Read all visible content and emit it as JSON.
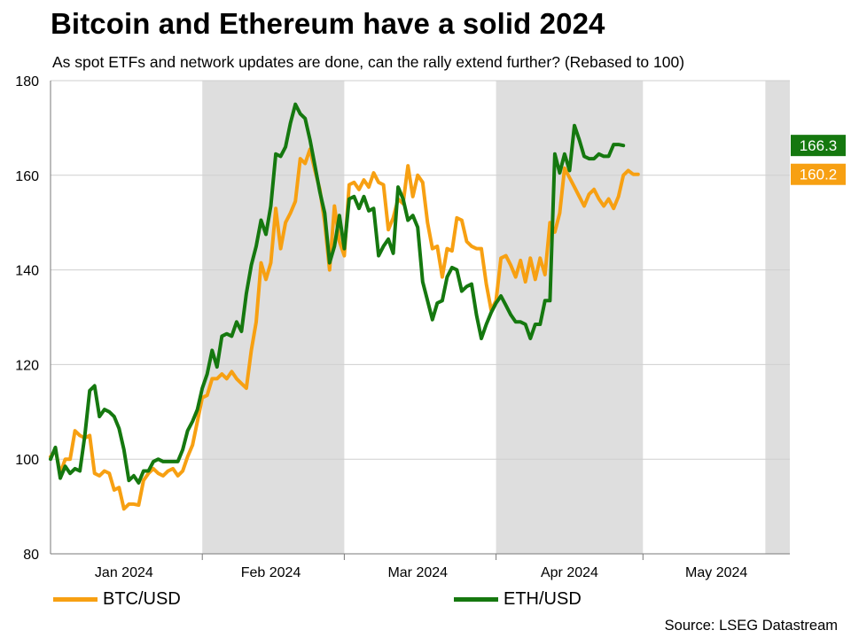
{
  "title": "Bitcoin and Ethereum have a solid 2024",
  "subtitle": "As spot ETFs and network updates are done, can the rally extend further? (Rebased to 100)",
  "source": "Source: LSEG Datastream",
  "colors": {
    "btc": "#F7A012",
    "eth": "#15780F",
    "shade": "#DEDEDE",
    "grid": "#CFCFCF"
  },
  "chart_data": {
    "type": "line",
    "title": "Bitcoin and Ethereum have a solid 2024",
    "xlabel": "",
    "ylabel": "",
    "ylim": [
      80,
      180
    ],
    "yticks": [
      80,
      100,
      120,
      140,
      160,
      180
    ],
    "grid": true,
    "legend_position": "bottom",
    "x_range": [
      "2024-01-01",
      "2024-05-31"
    ],
    "month_labels": [
      {
        "label": "Jan 2024",
        "date": "2024-01-16"
      },
      {
        "label": "Feb 2024",
        "date": "2024-02-15"
      },
      {
        "label": "Mar 2024",
        "date": "2024-03-16"
      },
      {
        "label": "Apr 2024",
        "date": "2024-04-16"
      },
      {
        "label": "May 2024",
        "date": "2024-05-16"
      }
    ],
    "month_ticks": [
      "2024-02-01",
      "2024-03-01",
      "2024-04-01",
      "2024-05-01"
    ],
    "shaded_ranges": [
      [
        "2024-02-01",
        "2024-03-01"
      ],
      [
        "2024-04-01",
        "2024-05-01"
      ],
      [
        "2024-05-26",
        "2024-05-31"
      ]
    ],
    "series": [
      {
        "name": "BTC/USD",
        "last_label": "160.2",
        "color": "#F7A012",
        "points": [
          [
            "2024-01-01",
            100.5
          ],
          [
            "2024-01-02",
            102
          ],
          [
            "2024-01-03",
            97
          ],
          [
            "2024-01-04",
            100
          ],
          [
            "2024-01-05",
            100
          ],
          [
            "2024-01-06",
            106
          ],
          [
            "2024-01-07",
            105
          ],
          [
            "2024-01-08",
            104.5
          ],
          [
            "2024-01-09",
            105
          ],
          [
            "2024-01-10",
            97
          ],
          [
            "2024-01-11",
            96.5
          ],
          [
            "2024-01-12",
            97.5
          ],
          [
            "2024-01-13",
            97
          ],
          [
            "2024-01-14",
            93.5
          ],
          [
            "2024-01-15",
            94
          ],
          [
            "2024-01-16",
            89.5
          ],
          [
            "2024-01-17",
            90.5
          ],
          [
            "2024-01-18",
            90.5
          ],
          [
            "2024-01-19",
            90.3
          ],
          [
            "2024-01-20",
            95.5
          ],
          [
            "2024-01-21",
            97
          ],
          [
            "2024-01-22",
            98
          ],
          [
            "2024-01-23",
            97
          ],
          [
            "2024-01-24",
            96.5
          ],
          [
            "2024-01-25",
            97.5
          ],
          [
            "2024-01-26",
            98
          ],
          [
            "2024-01-27",
            96.5
          ],
          [
            "2024-01-28",
            97.5
          ],
          [
            "2024-01-29",
            100.5
          ],
          [
            "2024-01-30",
            103
          ],
          [
            "2024-01-31",
            108
          ],
          [
            "2024-02-01",
            113
          ],
          [
            "2024-02-02",
            113.5
          ],
          [
            "2024-02-03",
            117
          ],
          [
            "2024-02-04",
            117
          ],
          [
            "2024-02-05",
            118
          ],
          [
            "2024-02-06",
            117
          ],
          [
            "2024-02-07",
            118.5
          ],
          [
            "2024-02-08",
            117
          ],
          [
            "2024-02-09",
            116
          ],
          [
            "2024-02-10",
            115
          ],
          [
            "2024-02-11",
            123
          ],
          [
            "2024-02-12",
            129
          ],
          [
            "2024-02-13",
            141.5
          ],
          [
            "2024-02-14",
            138
          ],
          [
            "2024-02-15",
            141.5
          ],
          [
            "2024-02-16",
            153
          ],
          [
            "2024-02-17",
            144.5
          ],
          [
            "2024-02-18",
            150
          ],
          [
            "2024-02-19",
            152
          ],
          [
            "2024-02-20",
            154.5
          ],
          [
            "2024-02-21",
            163.5
          ],
          [
            "2024-02-22",
            162.5
          ],
          [
            "2024-02-23",
            165.5
          ],
          [
            "2024-02-24",
            161
          ],
          [
            "2024-02-25",
            157
          ],
          [
            "2024-02-26",
            150
          ],
          [
            "2024-02-27",
            140
          ],
          [
            "2024-02-28",
            153.5
          ],
          [
            "2024-02-29",
            146
          ],
          [
            "2024-03-01",
            143
          ],
          [
            "2024-03-02",
            158
          ],
          [
            "2024-03-03",
            158.5
          ],
          [
            "2024-03-04",
            157
          ],
          [
            "2024-03-05",
            159
          ],
          [
            "2024-03-06",
            157.5
          ],
          [
            "2024-03-07",
            160.5
          ],
          [
            "2024-03-08",
            158.5
          ],
          [
            "2024-03-09",
            158
          ],
          [
            "2024-03-10",
            148.5
          ],
          [
            "2024-03-11",
            151
          ],
          [
            "2024-03-12",
            155
          ],
          [
            "2024-03-13",
            154
          ],
          [
            "2024-03-14",
            162
          ],
          [
            "2024-03-15",
            155.5
          ],
          [
            "2024-03-16",
            160
          ],
          [
            "2024-03-17",
            158.5
          ],
          [
            "2024-03-18",
            150
          ],
          [
            "2024-03-19",
            144.5
          ],
          [
            "2024-03-20",
            145
          ],
          [
            "2024-03-21",
            138.5
          ],
          [
            "2024-03-22",
            144.5
          ],
          [
            "2024-03-23",
            144
          ],
          [
            "2024-03-24",
            151
          ],
          [
            "2024-03-25",
            150.5
          ],
          [
            "2024-03-26",
            146
          ],
          [
            "2024-03-27",
            145
          ],
          [
            "2024-03-28",
            144.5
          ],
          [
            "2024-03-29",
            144.5
          ],
          [
            "2024-03-30",
            137
          ],
          [
            "2024-03-31",
            131.5
          ],
          [
            "2024-04-01",
            133.5
          ],
          [
            "2024-04-02",
            142.5
          ],
          [
            "2024-04-03",
            143
          ],
          [
            "2024-04-04",
            141
          ],
          [
            "2024-04-05",
            138.5
          ],
          [
            "2024-04-06",
            142
          ],
          [
            "2024-04-07",
            137.5
          ],
          [
            "2024-04-08",
            142.5
          ],
          [
            "2024-04-09",
            138
          ],
          [
            "2024-04-10",
            142.5
          ],
          [
            "2024-04-11",
            139
          ],
          [
            "2024-04-12",
            150
          ],
          [
            "2024-04-13",
            148
          ],
          [
            "2024-04-14",
            152
          ],
          [
            "2024-04-15",
            161.5
          ],
          [
            "2024-04-16",
            159.5
          ],
          [
            "2024-04-17",
            157.5
          ],
          [
            "2024-04-18",
            155.5
          ],
          [
            "2024-04-19",
            153.5
          ],
          [
            "2024-04-20",
            156
          ],
          [
            "2024-04-21",
            157
          ],
          [
            "2024-04-22",
            155
          ],
          [
            "2024-04-23",
            153.5
          ],
          [
            "2024-04-24",
            155
          ],
          [
            "2024-04-25",
            153
          ],
          [
            "2024-04-26",
            155.5
          ],
          [
            "2024-04-27",
            160
          ],
          [
            "2024-04-28",
            161
          ],
          [
            "2024-04-29",
            160.2
          ],
          [
            "2024-04-30",
            160.2
          ]
        ]
      },
      {
        "name": "ETH/USD",
        "last_label": "166.3",
        "color": "#15780F",
        "points": [
          [
            "2024-01-01",
            100
          ],
          [
            "2024-01-02",
            102.5
          ],
          [
            "2024-01-03",
            96
          ],
          [
            "2024-01-04",
            98.5
          ],
          [
            "2024-01-05",
            97
          ],
          [
            "2024-01-06",
            98
          ],
          [
            "2024-01-07",
            97.5
          ],
          [
            "2024-01-08",
            105
          ],
          [
            "2024-01-09",
            114.5
          ],
          [
            "2024-01-10",
            115.5
          ],
          [
            "2024-01-11",
            109
          ],
          [
            "2024-01-12",
            110.5
          ],
          [
            "2024-01-13",
            110
          ],
          [
            "2024-01-14",
            109
          ],
          [
            "2024-01-15",
            106.5
          ],
          [
            "2024-01-16",
            102
          ],
          [
            "2024-01-17",
            95.5
          ],
          [
            "2024-01-18",
            96.5
          ],
          [
            "2024-01-19",
            95
          ],
          [
            "2024-01-20",
            97.5
          ],
          [
            "2024-01-21",
            97.5
          ],
          [
            "2024-01-22",
            99.5
          ],
          [
            "2024-01-23",
            100
          ],
          [
            "2024-01-24",
            99.5
          ],
          [
            "2024-01-25",
            99.5
          ],
          [
            "2024-01-26",
            99.5
          ],
          [
            "2024-01-27",
            99.5
          ],
          [
            "2024-01-28",
            102
          ],
          [
            "2024-01-29",
            106
          ],
          [
            "2024-01-30",
            108
          ],
          [
            "2024-01-31",
            110.5
          ],
          [
            "2024-02-01",
            115
          ],
          [
            "2024-02-02",
            118
          ],
          [
            "2024-02-03",
            123
          ],
          [
            "2024-02-04",
            119.5
          ],
          [
            "2024-02-05",
            126
          ],
          [
            "2024-02-06",
            126.5
          ],
          [
            "2024-02-07",
            126
          ],
          [
            "2024-02-08",
            129
          ],
          [
            "2024-02-09",
            127
          ],
          [
            "2024-02-10",
            135
          ],
          [
            "2024-02-11",
            141
          ],
          [
            "2024-02-12",
            145
          ],
          [
            "2024-02-13",
            150.5
          ],
          [
            "2024-02-14",
            147.5
          ],
          [
            "2024-02-15",
            153.5
          ],
          [
            "2024-02-16",
            164.5
          ],
          [
            "2024-02-17",
            164
          ],
          [
            "2024-02-18",
            166
          ],
          [
            "2024-02-19",
            171
          ],
          [
            "2024-02-20",
            175
          ],
          [
            "2024-02-21",
            173
          ],
          [
            "2024-02-22",
            172
          ],
          [
            "2024-02-23",
            167.5
          ],
          [
            "2024-02-24",
            162
          ],
          [
            "2024-02-25",
            156.5
          ],
          [
            "2024-02-26",
            152
          ],
          [
            "2024-02-27",
            141.5
          ],
          [
            "2024-02-28",
            145
          ],
          [
            "2024-02-29",
            151.5
          ],
          [
            "2024-03-01",
            144.5
          ],
          [
            "2024-03-02",
            155
          ],
          [
            "2024-03-03",
            155.5
          ],
          [
            "2024-03-04",
            153
          ],
          [
            "2024-03-05",
            155.5
          ],
          [
            "2024-03-06",
            152.5
          ],
          [
            "2024-03-07",
            153
          ],
          [
            "2024-03-08",
            143
          ],
          [
            "2024-03-09",
            145
          ],
          [
            "2024-03-10",
            146.5
          ],
          [
            "2024-03-11",
            143.5
          ],
          [
            "2024-03-12",
            157.5
          ],
          [
            "2024-03-13",
            155
          ],
          [
            "2024-03-14",
            150.5
          ],
          [
            "2024-03-15",
            151.5
          ],
          [
            "2024-03-16",
            149
          ],
          [
            "2024-03-17",
            137.5
          ],
          [
            "2024-03-18",
            133.5
          ],
          [
            "2024-03-19",
            129.5
          ],
          [
            "2024-03-20",
            133
          ],
          [
            "2024-03-21",
            133.5
          ],
          [
            "2024-03-22",
            138.5
          ],
          [
            "2024-03-23",
            140.5
          ],
          [
            "2024-03-24",
            140
          ],
          [
            "2024-03-25",
            135.5
          ],
          [
            "2024-03-26",
            136.5
          ],
          [
            "2024-03-27",
            137
          ],
          [
            "2024-03-28",
            130.5
          ],
          [
            "2024-03-29",
            125.5
          ],
          [
            "2024-03-30",
            128.5
          ],
          [
            "2024-03-31",
            131
          ],
          [
            "2024-04-01",
            133
          ],
          [
            "2024-04-02",
            134.5
          ],
          [
            "2024-04-03",
            132.5
          ],
          [
            "2024-04-04",
            130.5
          ],
          [
            "2024-04-05",
            129
          ],
          [
            "2024-04-06",
            129
          ],
          [
            "2024-04-07",
            128.5
          ],
          [
            "2024-04-08",
            125.5
          ],
          [
            "2024-04-09",
            128.5
          ],
          [
            "2024-04-10",
            128.5
          ],
          [
            "2024-04-11",
            133.5
          ],
          [
            "2024-04-12",
            133.5
          ],
          [
            "2024-04-13",
            164.5
          ],
          [
            "2024-04-14",
            160.5
          ],
          [
            "2024-04-15",
            164.5
          ],
          [
            "2024-04-16",
            161
          ],
          [
            "2024-04-17",
            170.5
          ],
          [
            "2024-04-18",
            167.5
          ],
          [
            "2024-04-19",
            164
          ],
          [
            "2024-04-20",
            163.5
          ],
          [
            "2024-04-21",
            163.5
          ],
          [
            "2024-04-22",
            164.5
          ],
          [
            "2024-04-23",
            164
          ],
          [
            "2024-04-24",
            164
          ],
          [
            "2024-04-25",
            166.5
          ],
          [
            "2024-04-26",
            166.5
          ],
          [
            "2024-04-27",
            166.3
          ]
        ]
      }
    ]
  }
}
